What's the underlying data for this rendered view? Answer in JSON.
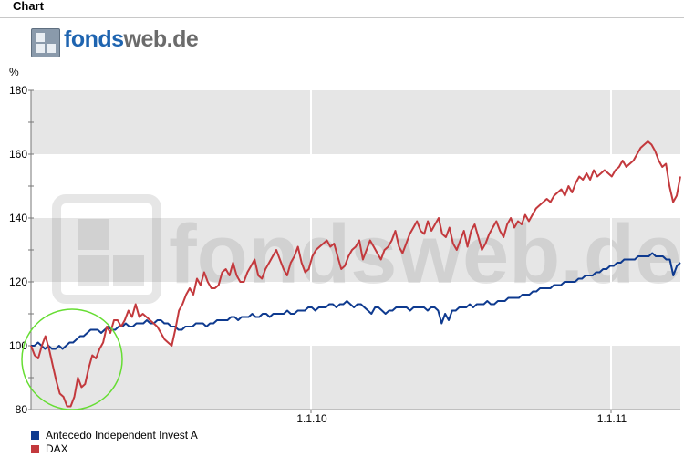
{
  "header": {
    "title": "Chart"
  },
  "logo": {
    "part1": "fonds",
    "part2": "web.de"
  },
  "watermark": "fondsweb.de",
  "colors": {
    "fund": "#0e3a8f",
    "dax": "#c3393d",
    "band": "#e6e6e6",
    "highlight": "#66dd33"
  },
  "chart_data": {
    "type": "line",
    "ylabel": "%",
    "ylim": [
      80,
      180
    ],
    "yticks": [
      80,
      100,
      120,
      140,
      160,
      180
    ],
    "xtick_labels": [
      "1.1.10",
      "1.1.11"
    ],
    "series": [
      {
        "name": "Antecedo Independent Invest A",
        "color": "#0e3a8f",
        "values": [
          100,
          100,
          101,
          100,
          99,
          100,
          99,
          99,
          100,
          99,
          100,
          101,
          101,
          102,
          103,
          103,
          104,
          105,
          105,
          105,
          104,
          105,
          106,
          105,
          105,
          106,
          106,
          107,
          106,
          106,
          107,
          107,
          107,
          108,
          107,
          107,
          108,
          108,
          107,
          107,
          106,
          106,
          105,
          105,
          106,
          106,
          106,
          107,
          107,
          107,
          106,
          107,
          107,
          108,
          108,
          108,
          108,
          109,
          109,
          108,
          109,
          109,
          109,
          110,
          109,
          109,
          110,
          110,
          109,
          110,
          110,
          110,
          110,
          111,
          110,
          110,
          111,
          111,
          111,
          112,
          112,
          111,
          112,
          112,
          112,
          113,
          113,
          112,
          113,
          113,
          114,
          113,
          112,
          113,
          113,
          112,
          111,
          110,
          112,
          112,
          111,
          110,
          111,
          111,
          112,
          112,
          112,
          112,
          111,
          112,
          112,
          112,
          112,
          111,
          112,
          112,
          111,
          107,
          110,
          108,
          111,
          111,
          112,
          112,
          112,
          113,
          112,
          113,
          113,
          113,
          114,
          113,
          113,
          114,
          114,
          114,
          115,
          115,
          115,
          115,
          116,
          116,
          116,
          117,
          117,
          118,
          118,
          118,
          118,
          119,
          119,
          119,
          120,
          120,
          120,
          120,
          121,
          121,
          122,
          122,
          122,
          123,
          123,
          124,
          124,
          125,
          125,
          126,
          126,
          127,
          127,
          127,
          127,
          128,
          128,
          128,
          128,
          129,
          128,
          128,
          128,
          127,
          127,
          122,
          125,
          126
        ]
      },
      {
        "name": "DAX",
        "color": "#c3393d",
        "values": [
          100,
          97,
          96,
          100,
          103,
          99,
          94,
          89,
          85,
          84,
          81,
          81,
          84,
          90,
          87,
          88,
          93,
          97,
          96,
          99,
          101,
          106,
          104,
          108,
          108,
          106,
          108,
          111,
          109,
          113,
          109,
          110,
          109,
          108,
          107,
          106,
          104,
          102,
          101,
          100,
          105,
          111,
          113,
          116,
          118,
          116,
          121,
          119,
          123,
          120,
          118,
          118,
          119,
          123,
          124,
          122,
          126,
          122,
          120,
          120,
          123,
          125,
          127,
          122,
          121,
          124,
          126,
          128,
          130,
          127,
          124,
          122,
          126,
          128,
          131,
          126,
          123,
          124,
          128,
          130,
          131,
          132,
          133,
          131,
          132,
          128,
          124,
          125,
          128,
          130,
          131,
          133,
          127,
          130,
          133,
          131,
          129,
          127,
          130,
          131,
          133,
          136,
          131,
          129,
          132,
          135,
          137,
          139,
          136,
          135,
          139,
          136,
          138,
          140,
          135,
          134,
          137,
          132,
          130,
          133,
          136,
          131,
          136,
          138,
          134,
          130,
          132,
          135,
          137,
          139,
          136,
          134,
          138,
          140,
          137,
          139,
          138,
          141,
          139,
          141,
          143,
          144,
          145,
          146,
          145,
          147,
          148,
          149,
          147,
          150,
          148,
          151,
          153,
          152,
          154,
          152,
          155,
          153,
          154,
          155,
          154,
          153,
          155,
          156,
          158,
          156,
          157,
          158,
          160,
          162,
          163,
          164,
          163,
          161,
          158,
          156,
          157,
          150,
          145,
          147,
          153
        ]
      }
    ],
    "grid": true,
    "legend": "bottom-left",
    "annotations": [
      {
        "type": "circle",
        "label": ""
      }
    ]
  }
}
